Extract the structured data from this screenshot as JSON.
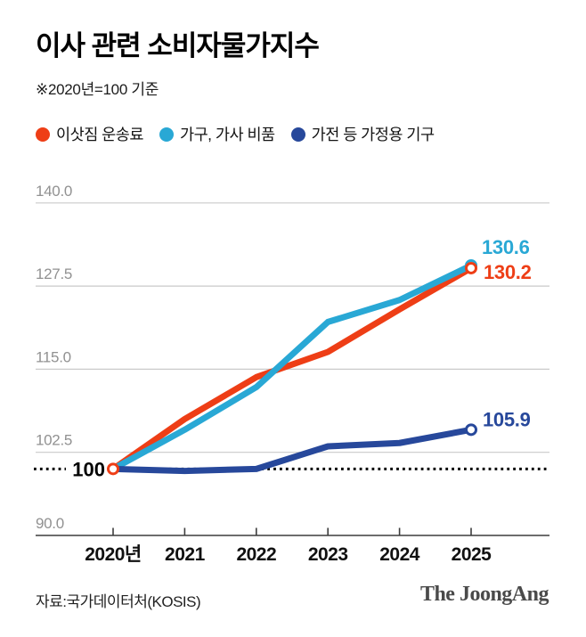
{
  "header": {
    "title": "이사 관련 소비자물가지수",
    "subtitle": "※2020년=100 기준"
  },
  "legend": {
    "items": [
      {
        "label": "이삿짐 운송료",
        "color": "#ee3e16"
      },
      {
        "label": "가구, 가사 비품",
        "color": "#29a8d5"
      },
      {
        "label": "가전 등 가정용 기구",
        "color": "#27489b"
      }
    ]
  },
  "chart_data": {
    "type": "line",
    "title": "이사 관련 소비자물가지수",
    "note": "※2020년=100 기준",
    "x_tick_labels": [
      "2020년",
      "2021",
      "2022",
      "2023",
      "2024",
      "2025"
    ],
    "y_ticks": [
      90.0,
      102.5,
      115.0,
      127.5,
      140.0
    ],
    "y_tick_labels": [
      "90.0",
      "102.5",
      "115.0",
      "127.5",
      "140.0"
    ],
    "ylim": [
      90,
      141.5
    ],
    "grid": "horizontal-only",
    "legend_position": "top",
    "baseline": {
      "value": 100,
      "label": "100",
      "style": "dotted"
    },
    "series": [
      {
        "name": "이삿짐 운송료",
        "color": "#ee3e16",
        "values": [
          100,
          107.5,
          113.8,
          117.6,
          124.0,
          130.2
        ],
        "end_label": "130.2"
      },
      {
        "name": "가구, 가사 비품",
        "color": "#29a8d5",
        "values": [
          100,
          105.9,
          112.3,
          122.1,
          125.4,
          130.6
        ],
        "end_label": "130.6"
      },
      {
        "name": "가전 등 가정용 기구",
        "color": "#27489b",
        "values": [
          100,
          99.7,
          100.0,
          103.4,
          103.9,
          105.9
        ],
        "end_label": "105.9"
      }
    ]
  },
  "footer": {
    "source": "자료:국가데이터처(KOSIS)",
    "brand": "The JoongAng"
  }
}
